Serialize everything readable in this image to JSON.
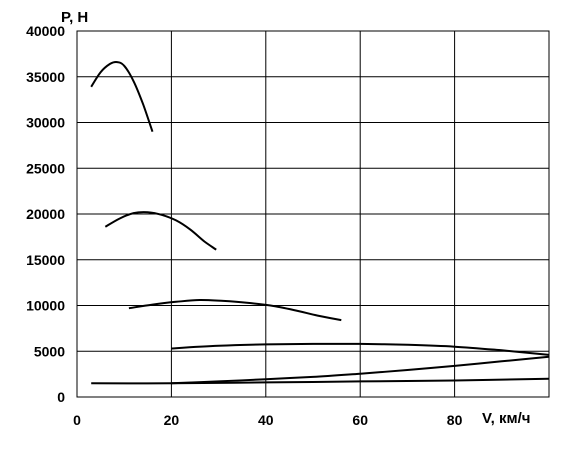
{
  "chart_data": {
    "type": "line",
    "title": "",
    "ylabel": "P, Н",
    "xlabel": "V, км/ч",
    "xlim": [
      0,
      100
    ],
    "ylim": [
      0,
      40000
    ],
    "x_ticks": [
      0,
      20,
      40,
      60,
      80
    ],
    "y_ticks": [
      0,
      5000,
      10000,
      15000,
      20000,
      25000,
      30000,
      35000,
      40000
    ],
    "grid": true,
    "legend": "none",
    "series": [
      {
        "x": [
          3,
          5,
          7,
          8.5,
          10,
          12,
          14,
          16
        ],
        "y": [
          33900,
          35500,
          36400,
          36600,
          36200,
          34500,
          32000,
          29000
        ]
      },
      {
        "x": [
          6,
          9,
          12,
          15,
          18,
          21,
          24,
          27,
          29.5
        ],
        "y": [
          18600,
          19500,
          20100,
          20200,
          19900,
          19300,
          18300,
          17000,
          16100
        ]
      },
      {
        "x": [
          11,
          16,
          21,
          26,
          31,
          36,
          41,
          46,
          51,
          56
        ],
        "y": [
          9700,
          10100,
          10400,
          10600,
          10500,
          10300,
          10000,
          9500,
          8900,
          8400
        ]
      },
      {
        "x": [
          20,
          30,
          40,
          50,
          60,
          70,
          80,
          90,
          100
        ],
        "y": [
          5300,
          5600,
          5750,
          5800,
          5800,
          5700,
          5500,
          5100,
          4600
        ]
      },
      {
        "x": [
          3,
          20,
          40,
          60,
          80,
          100
        ],
        "y": [
          1500,
          1500,
          1600,
          1700,
          1800,
          2000
        ]
      },
      {
        "x": [
          20,
          30,
          40,
          50,
          60,
          70,
          80,
          90,
          100
        ],
        "y": [
          1500,
          1700,
          1950,
          2200,
          2550,
          2950,
          3400,
          3900,
          4400
        ]
      }
    ]
  }
}
